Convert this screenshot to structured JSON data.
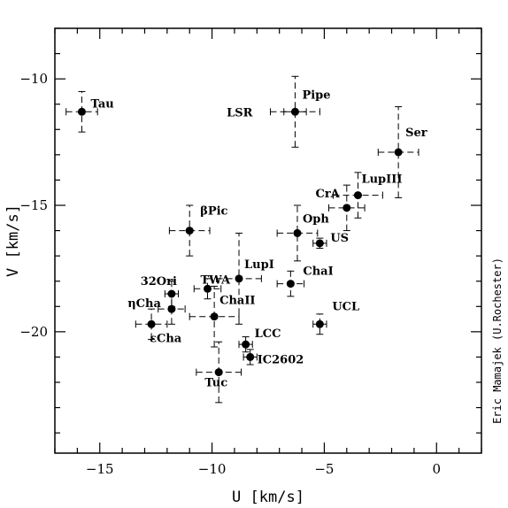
{
  "chart_data": {
    "type": "scatter",
    "title": "",
    "xlabel": "U [km/s]",
    "ylabel": "V [km/s]",
    "xlim": [
      -17,
      2
    ],
    "ylim": [
      -8,
      -24.8
    ],
    "x_ticks": [
      -15,
      -10,
      -5,
      0
    ],
    "x_tick_labels": [
      "−15",
      "−10",
      "−5",
      "0"
    ],
    "y_ticks": [
      -10,
      -15,
      -20
    ],
    "y_tick_labels": [
      "−10",
      "−15",
      "−20"
    ],
    "grid": false,
    "credit": "Eric Mamajek (U.Rochester)",
    "points": [
      {
        "label": "Tau",
        "x": -15.8,
        "y": -11.3,
        "xerr": 0.7,
        "yerr": 0.8,
        "label_pos": "right"
      },
      {
        "label": "Pipe",
        "x": -6.3,
        "y": -11.3,
        "xerr": 0.5,
        "yerr": 1.4,
        "label_pos": "upper-right"
      },
      {
        "label": "LSR",
        "x": -6.3,
        "y": -11.3,
        "xerr": 1.1,
        "yerr": 0,
        "label_pos": "far-left"
      },
      {
        "label": "Ser",
        "x": -1.7,
        "y": -12.9,
        "xerr": 0.9,
        "yerr": 1.8,
        "label_pos": "upper-right"
      },
      {
        "label": "LupIII",
        "x": -3.5,
        "y": -14.6,
        "xerr": 1.1,
        "yerr": 0.9,
        "label_pos": "upper-right"
      },
      {
        "label": "CrA",
        "x": -4.0,
        "y": -15.1,
        "xerr": 0.8,
        "yerr": 0.9,
        "label_pos": "upper-left"
      },
      {
        "label": "Oph",
        "x": -6.2,
        "y": -16.1,
        "xerr": 0.9,
        "yerr": 1.1,
        "label_pos": "upper-right"
      },
      {
        "label": "US",
        "x": -5.2,
        "y": -16.5,
        "xerr": 0.3,
        "yerr": 0.2,
        "label_pos": "upper-right"
      },
      {
        "label": "βPic",
        "x": -11.0,
        "y": -16.0,
        "xerr": 0.9,
        "yerr": 1.0,
        "label_pos": "upper-right"
      },
      {
        "label": "LupI",
        "x": -8.8,
        "y": -17.9,
        "xerr": 1.0,
        "yerr": 1.8,
        "label_pos": "upper-right"
      },
      {
        "label": "ChaI",
        "x": -6.5,
        "y": -18.1,
        "xerr": 0.6,
        "yerr": 0.5,
        "label_pos": "upper-right"
      },
      {
        "label": "32Ori",
        "x": -11.8,
        "y": -18.5,
        "xerr": 0.3,
        "yerr": 0.5,
        "label_pos": "upper-left"
      },
      {
        "label": "TWA",
        "x": -10.2,
        "y": -18.3,
        "xerr": 0.6,
        "yerr": 0.4,
        "label_pos": "upper-right"
      },
      {
        "label": "ηCha",
        "x": -11.8,
        "y": -19.1,
        "xerr": 0.6,
        "yerr": 0.6,
        "label_pos": "left"
      },
      {
        "label": "ChaII",
        "x": -9.9,
        "y": -19.4,
        "xerr": 1.1,
        "yerr": 1.2,
        "label_pos": "upper-right"
      },
      {
        "label": "εCha",
        "x": -12.7,
        "y": -19.7,
        "xerr": 0.7,
        "yerr": 0.6,
        "label_pos": "lower-right"
      },
      {
        "label": "UCL",
        "x": -5.2,
        "y": -19.7,
        "xerr": 0.3,
        "yerr": 0.4,
        "label_pos": "upper-right"
      },
      {
        "label": "LCC",
        "x": -8.5,
        "y": -20.5,
        "xerr": 0.3,
        "yerr": 0.3,
        "label_pos": "upper-right"
      },
      {
        "label": "IC2602",
        "x": -8.3,
        "y": -21.0,
        "xerr": 0.3,
        "yerr": 0.3,
        "label_pos": "right"
      },
      {
        "label": "Tuc",
        "x": -9.7,
        "y": -21.6,
        "xerr": 1.0,
        "yerr": 1.2,
        "label_pos": "upper-left"
      }
    ]
  }
}
